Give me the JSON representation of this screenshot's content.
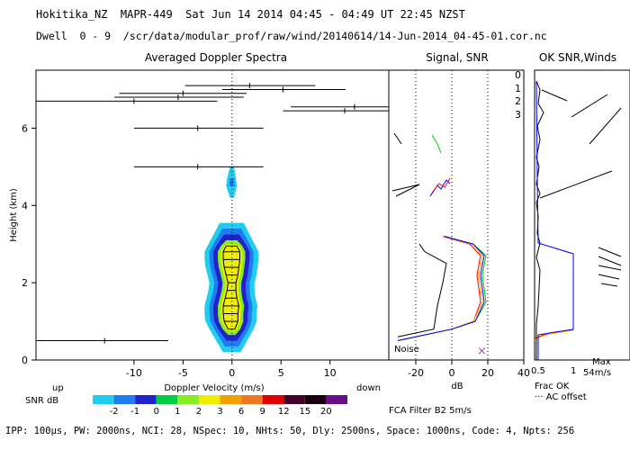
{
  "header": {
    "line1": "Hokitika_NZ  MAPR-449  Sat Jun 14 2014 04:45 - 04:49 UT 22:45 NZST",
    "line2": "Dwell  0 - 9  /scr/data/modular_prof/raw/wind/20140614/14-Jun-2014_04-45-01.cor.nc"
  },
  "footer": {
    "params": "IPP: 100µs, PW: 2000ns, NCI: 28, NSpec: 10, NHts: 50, Dly: 2500ns, Space: 1000ns, Code: 4, Npts: 256"
  },
  "colors": {
    "snr_scale": [
      "#22ccee",
      "#1e7cf0",
      "#2222cc",
      "#00cc44",
      "#88ee22",
      "#eeee00",
      "#f2a000",
      "#ee7722",
      "#e00000",
      "#44002a",
      "#180010",
      "#6a0d8a"
    ],
    "beam0": "#ff0000",
    "beam1": "#ffaa00",
    "beam2": "#00cc00",
    "beam3": "#0000ff",
    "noise": "#000000",
    "frac_ok": "#000080"
  },
  "chart_data": [
    {
      "type": "spectra",
      "title": "Averaged Doppler Spectra",
      "xlabel": "Doppler Velocity (m/s)",
      "ylabel": "Height (km)",
      "xlim": [
        -20,
        16
      ],
      "ylim": [
        0,
        7.5
      ],
      "xticks": [
        -10,
        -5,
        0,
        5,
        10
      ],
      "yticks": [
        0,
        2,
        4,
        6
      ],
      "left_note": "up",
      "right_note": "down",
      "colorbar": {
        "label": "SNR dB",
        "ticks": [
          "-2",
          "-1",
          "0",
          "1",
          "2",
          "3",
          "6",
          "9",
          "12",
          "15",
          "20"
        ]
      },
      "spectral_core": [
        {
          "h": 0.8,
          "lo": -0.4,
          "hi": 0.3
        },
        {
          "h": 1.0,
          "lo": -0.8,
          "hi": 0.6
        },
        {
          "h": 1.2,
          "lo": -0.9,
          "hi": 0.6
        },
        {
          "h": 1.4,
          "lo": -0.9,
          "hi": 0.7
        },
        {
          "h": 1.6,
          "lo": -0.7,
          "hi": 0.5
        },
        {
          "h": 1.8,
          "lo": -0.5,
          "hi": 0.4
        },
        {
          "h": 2.0,
          "lo": -0.4,
          "hi": 0.4
        },
        {
          "h": 2.2,
          "lo": -0.6,
          "hi": 0.6
        },
        {
          "h": 2.4,
          "lo": -0.8,
          "hi": 0.7
        },
        {
          "h": 2.6,
          "lo": -0.9,
          "hi": 0.8
        },
        {
          "h": 2.8,
          "lo": -0.9,
          "hi": 0.8
        },
        {
          "h": 2.95,
          "lo": -0.6,
          "hi": 0.5
        }
      ],
      "moment_bars": [
        {
          "h": 0.5,
          "lo": -20,
          "hi": -6.5,
          "mean": -13
        },
        {
          "h": 5.0,
          "lo": -10,
          "hi": 3.2,
          "mean": -3.5
        },
        {
          "h": 6.0,
          "lo": -10,
          "hi": 3.2,
          "mean": -3.5
        },
        {
          "h": 6.45,
          "lo": 5.2,
          "hi": 16,
          "mean": 11.5
        },
        {
          "h": 6.55,
          "lo": 6,
          "hi": 16,
          "mean": 12.5
        },
        {
          "h": 6.7,
          "lo": -20,
          "hi": -1.5,
          "mean": -10
        },
        {
          "h": 6.8,
          "lo": -12,
          "hi": 1.2,
          "mean": -5.5
        },
        {
          "h": 6.9,
          "lo": -11.5,
          "hi": 1.5,
          "mean": -5
        },
        {
          "h": 7.0,
          "lo": -1,
          "hi": 11.6,
          "mean": 5.2
        },
        {
          "h": 7.1,
          "lo": -4.8,
          "hi": 8.5,
          "mean": 1.8
        }
      ]
    },
    {
      "type": "line",
      "title": "Signal, SNR",
      "xlabel": "dB",
      "xlim": [
        -35,
        40
      ],
      "xticks": [
        -20,
        0,
        20,
        40
      ],
      "noise_label": "Noise",
      "legend": [
        "0",
        "1",
        "2",
        "3"
      ],
      "series": [
        {
          "name": "noise",
          "points": [
            [
              -30,
              0.6
            ],
            [
              -10,
              0.8
            ],
            [
              -8,
              1.4
            ],
            [
              -5,
              2
            ],
            [
              -3,
              2.5
            ],
            [
              -15,
              2.8
            ],
            [
              -18,
              3
            ]
          ]
        },
        {
          "name": "0",
          "points": [
            [
              -30,
              0.5
            ],
            [
              0,
              0.8
            ],
            [
              12,
              1
            ],
            [
              16,
              1.5
            ],
            [
              14,
              2.2
            ],
            [
              16,
              2.7
            ],
            [
              10,
              3
            ],
            [
              -5,
              3.2
            ]
          ]
        },
        {
          "name": "1",
          "points": [
            [
              -30,
              0.5
            ],
            [
              0,
              0.8
            ],
            [
              12,
              1
            ],
            [
              17,
              1.5
            ],
            [
              15,
              2.2
            ],
            [
              17,
              2.7
            ],
            [
              11,
              3
            ],
            [
              -4,
              3.2
            ]
          ]
        },
        {
          "name": "2",
          "points": [
            [
              -30,
              0.5
            ],
            [
              0,
              0.8
            ],
            [
              13,
              1
            ],
            [
              19,
              1.5
            ],
            [
              17,
              2.2
            ],
            [
              19,
              2.7
            ],
            [
              12,
              3
            ],
            [
              -4,
              3.2
            ]
          ]
        },
        {
          "name": "3",
          "points": [
            [
              -30,
              0.5
            ],
            [
              0,
              0.8
            ],
            [
              13,
              1
            ],
            [
              18,
              1.5
            ],
            [
              16,
              2.2
            ],
            [
              18,
              2.7
            ],
            [
              12,
              3
            ],
            [
              -4,
              3.2
            ]
          ]
        }
      ]
    },
    {
      "type": "profile",
      "title": "OK SNR,Winds",
      "xticks": [
        "0.5",
        "1"
      ],
      "legend_frac": "Frac OK",
      "legend_offset": "AC offset",
      "max_label": "Max",
      "max_value": "54m/s",
      "filter_label": "FCA Filter B2  5m/s"
    }
  ]
}
